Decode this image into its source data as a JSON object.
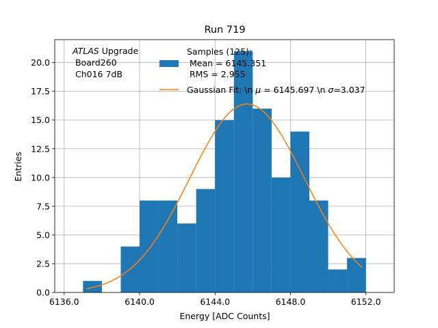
{
  "chart_data": {
    "type": "histogram",
    "title": "Run 719",
    "xlabel": "Energy [ADC Counts]",
    "ylabel": "Entries",
    "xlim": [
      6135.5,
      6153.5
    ],
    "ylim": [
      0,
      22
    ],
    "grid": true,
    "x_ticks": [
      6136,
      6140,
      6144,
      6148,
      6152
    ],
    "x_tick_labels": [
      "6136.0",
      "6140.0",
      "6144.0",
      "6148.0",
      "6152.0"
    ],
    "y_ticks": [
      0,
      2.5,
      5,
      7.5,
      10,
      12.5,
      15,
      17.5,
      20
    ],
    "y_tick_labels": [
      "0.0",
      "2.5",
      "5.0",
      "7.5",
      "10.0",
      "12.5",
      "15.0",
      "17.5",
      "20.0"
    ],
    "bins": [
      {
        "x0": 6137.0,
        "x1": 6138.0,
        "count": 1
      },
      {
        "x0": 6138.0,
        "x1": 6139.0,
        "count": 0
      },
      {
        "x0": 6139.0,
        "x1": 6140.0,
        "count": 4
      },
      {
        "x0": 6140.0,
        "x1": 6141.0,
        "count": 8
      },
      {
        "x0": 6141.0,
        "x1": 6142.0,
        "count": 8
      },
      {
        "x0": 6142.0,
        "x1": 6143.0,
        "count": 6
      },
      {
        "x0": 6143.0,
        "x1": 6144.0,
        "count": 9
      },
      {
        "x0": 6144.0,
        "x1": 6145.0,
        "count": 15
      },
      {
        "x0": 6145.0,
        "x1": 6146.0,
        "count": 21
      },
      {
        "x0": 6146.0,
        "x1": 6147.0,
        "count": 16
      },
      {
        "x0": 6147.0,
        "x1": 6148.0,
        "count": 10
      },
      {
        "x0": 6148.0,
        "x1": 6149.0,
        "count": 14
      },
      {
        "x0": 6149.0,
        "x1": 6150.0,
        "count": 8
      },
      {
        "x0": 6150.0,
        "x1": 6151.0,
        "count": 2
      },
      {
        "x0": 6151.0,
        "x1": 6152.0,
        "count": 3
      }
    ],
    "gaussian_fit": {
      "mu": 6145.697,
      "sigma": 3.037,
      "amplitude": 16.4,
      "x_range": [
        6137.2,
        6151.8
      ]
    },
    "colors": {
      "histogram": "#1f77b4",
      "fit": "#ff7f0e",
      "grid": "#b0b0b0"
    },
    "annotation": {
      "line1_italic": "ATLAS",
      "line1_rest": " Upgrade",
      "line2": " Board260",
      "line3": " Ch016 7dB"
    },
    "legend": {
      "placement": "top-center",
      "hist_label_lines": [
        "Samples (125):",
        " Mean = 6145.351",
        " RMS = 2.955"
      ],
      "fit_label_prefix": "Gaussian Fit: \\n ",
      "fit_label_mu": "μ",
      "fit_label_middle": " = 6145.697 \\n ",
      "fit_label_sigma": "σ",
      "fit_label_suffix": "=3.037"
    }
  }
}
